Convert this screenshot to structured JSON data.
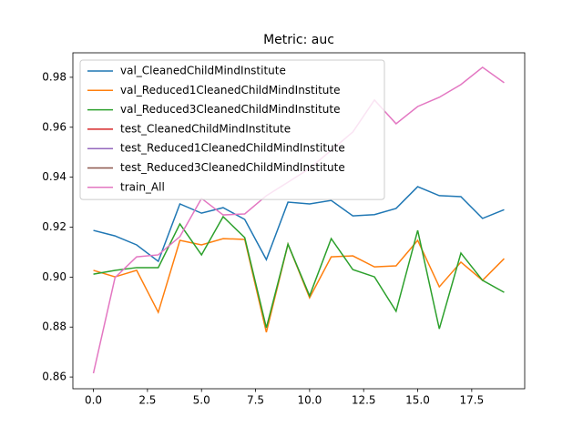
{
  "chart_data": {
    "type": "line",
    "title": "Metric: auc",
    "x": [
      0,
      1,
      2,
      3,
      4,
      5,
      6,
      7,
      8,
      9,
      10,
      11,
      12,
      13,
      14,
      15,
      16,
      17,
      18,
      19
    ],
    "series": [
      {
        "name": "val_CleanedChildMindInstitute",
        "color": "#1f77b4",
        "values": [
          0.9187,
          0.9165,
          0.9129,
          0.9063,
          0.9293,
          0.9256,
          0.9278,
          0.9231,
          0.907,
          0.93,
          0.9293,
          0.9307,
          0.9245,
          0.925,
          0.9275,
          0.9362,
          0.9326,
          0.9322,
          0.9235,
          0.927
        ]
      },
      {
        "name": "val_Reduced1CleanedChildMindInstitute",
        "color": "#ff7f0e",
        "values": [
          0.9027,
          0.9001,
          0.9027,
          0.8859,
          0.9147,
          0.9129,
          0.9154,
          0.9151,
          0.8779,
          0.9132,
          0.8917,
          0.9081,
          0.9085,
          0.9041,
          0.9045,
          0.9147,
          0.8961,
          0.906,
          0.8987,
          0.9074
        ]
      },
      {
        "name": "val_Reduced3CleanedChildMindInstitute",
        "color": "#2ca02c",
        "values": [
          0.9012,
          0.9027,
          0.9038,
          0.9038,
          0.9213,
          0.9089,
          0.9242,
          0.9158,
          0.8797,
          0.9132,
          0.8925,
          0.9154,
          0.903,
          0.9001,
          0.8863,
          0.9187,
          0.8793,
          0.9096,
          0.8987,
          0.8939
        ]
      },
      {
        "name": "test_CleanedChildMindInstitute",
        "color": "#d62728",
        "values": [
          null,
          null,
          null,
          null,
          null,
          null,
          null,
          null,
          null,
          null,
          null,
          null,
          null,
          null,
          null,
          null,
          null,
          null,
          null,
          null
        ]
      },
      {
        "name": "test_Reduced1CleanedChildMindInstitute",
        "color": "#9467bd",
        "values": [
          null,
          null,
          null,
          null,
          null,
          null,
          null,
          null,
          null,
          null,
          null,
          null,
          null,
          null,
          null,
          null,
          null,
          null,
          null,
          null
        ]
      },
      {
        "name": "test_Reduced3CleanedChildMindInstitute",
        "color": "#8c564b",
        "values": [
          null,
          null,
          null,
          null,
          null,
          null,
          null,
          null,
          null,
          null,
          null,
          null,
          null,
          null,
          null,
          null,
          null,
          null,
          null,
          null
        ]
      },
      {
        "name": "train_All",
        "color": "#e377c2",
        "values": [
          0.8615,
          0.8998,
          0.9081,
          0.9089,
          0.9162,
          0.9315,
          0.9249,
          0.9253,
          0.9326,
          0.938,
          0.9435,
          0.9508,
          0.9581,
          0.9709,
          0.9614,
          0.9683,
          0.972,
          0.9771,
          0.984,
          0.9778
        ]
      }
    ],
    "xlim": [
      -0.95,
      19.95
    ],
    "xticks": [
      {
        "value": 0,
        "label": "0.0"
      },
      2.5,
      {
        "value": 5,
        "label": "5.0"
      },
      7.5,
      {
        "value": 10,
        "label": "10.0"
      },
      12.5,
      {
        "value": 15,
        "label": "15.0"
      },
      17.5
    ],
    "ylim": [
      0.8553,
      0.9898
    ],
    "yticks": [
      0.86,
      0.88,
      {
        "value": 0.9,
        "label": "0.90"
      },
      0.92,
      0.94,
      0.96,
      0.98
    ],
    "grid": false,
    "legend": "upper left"
  }
}
